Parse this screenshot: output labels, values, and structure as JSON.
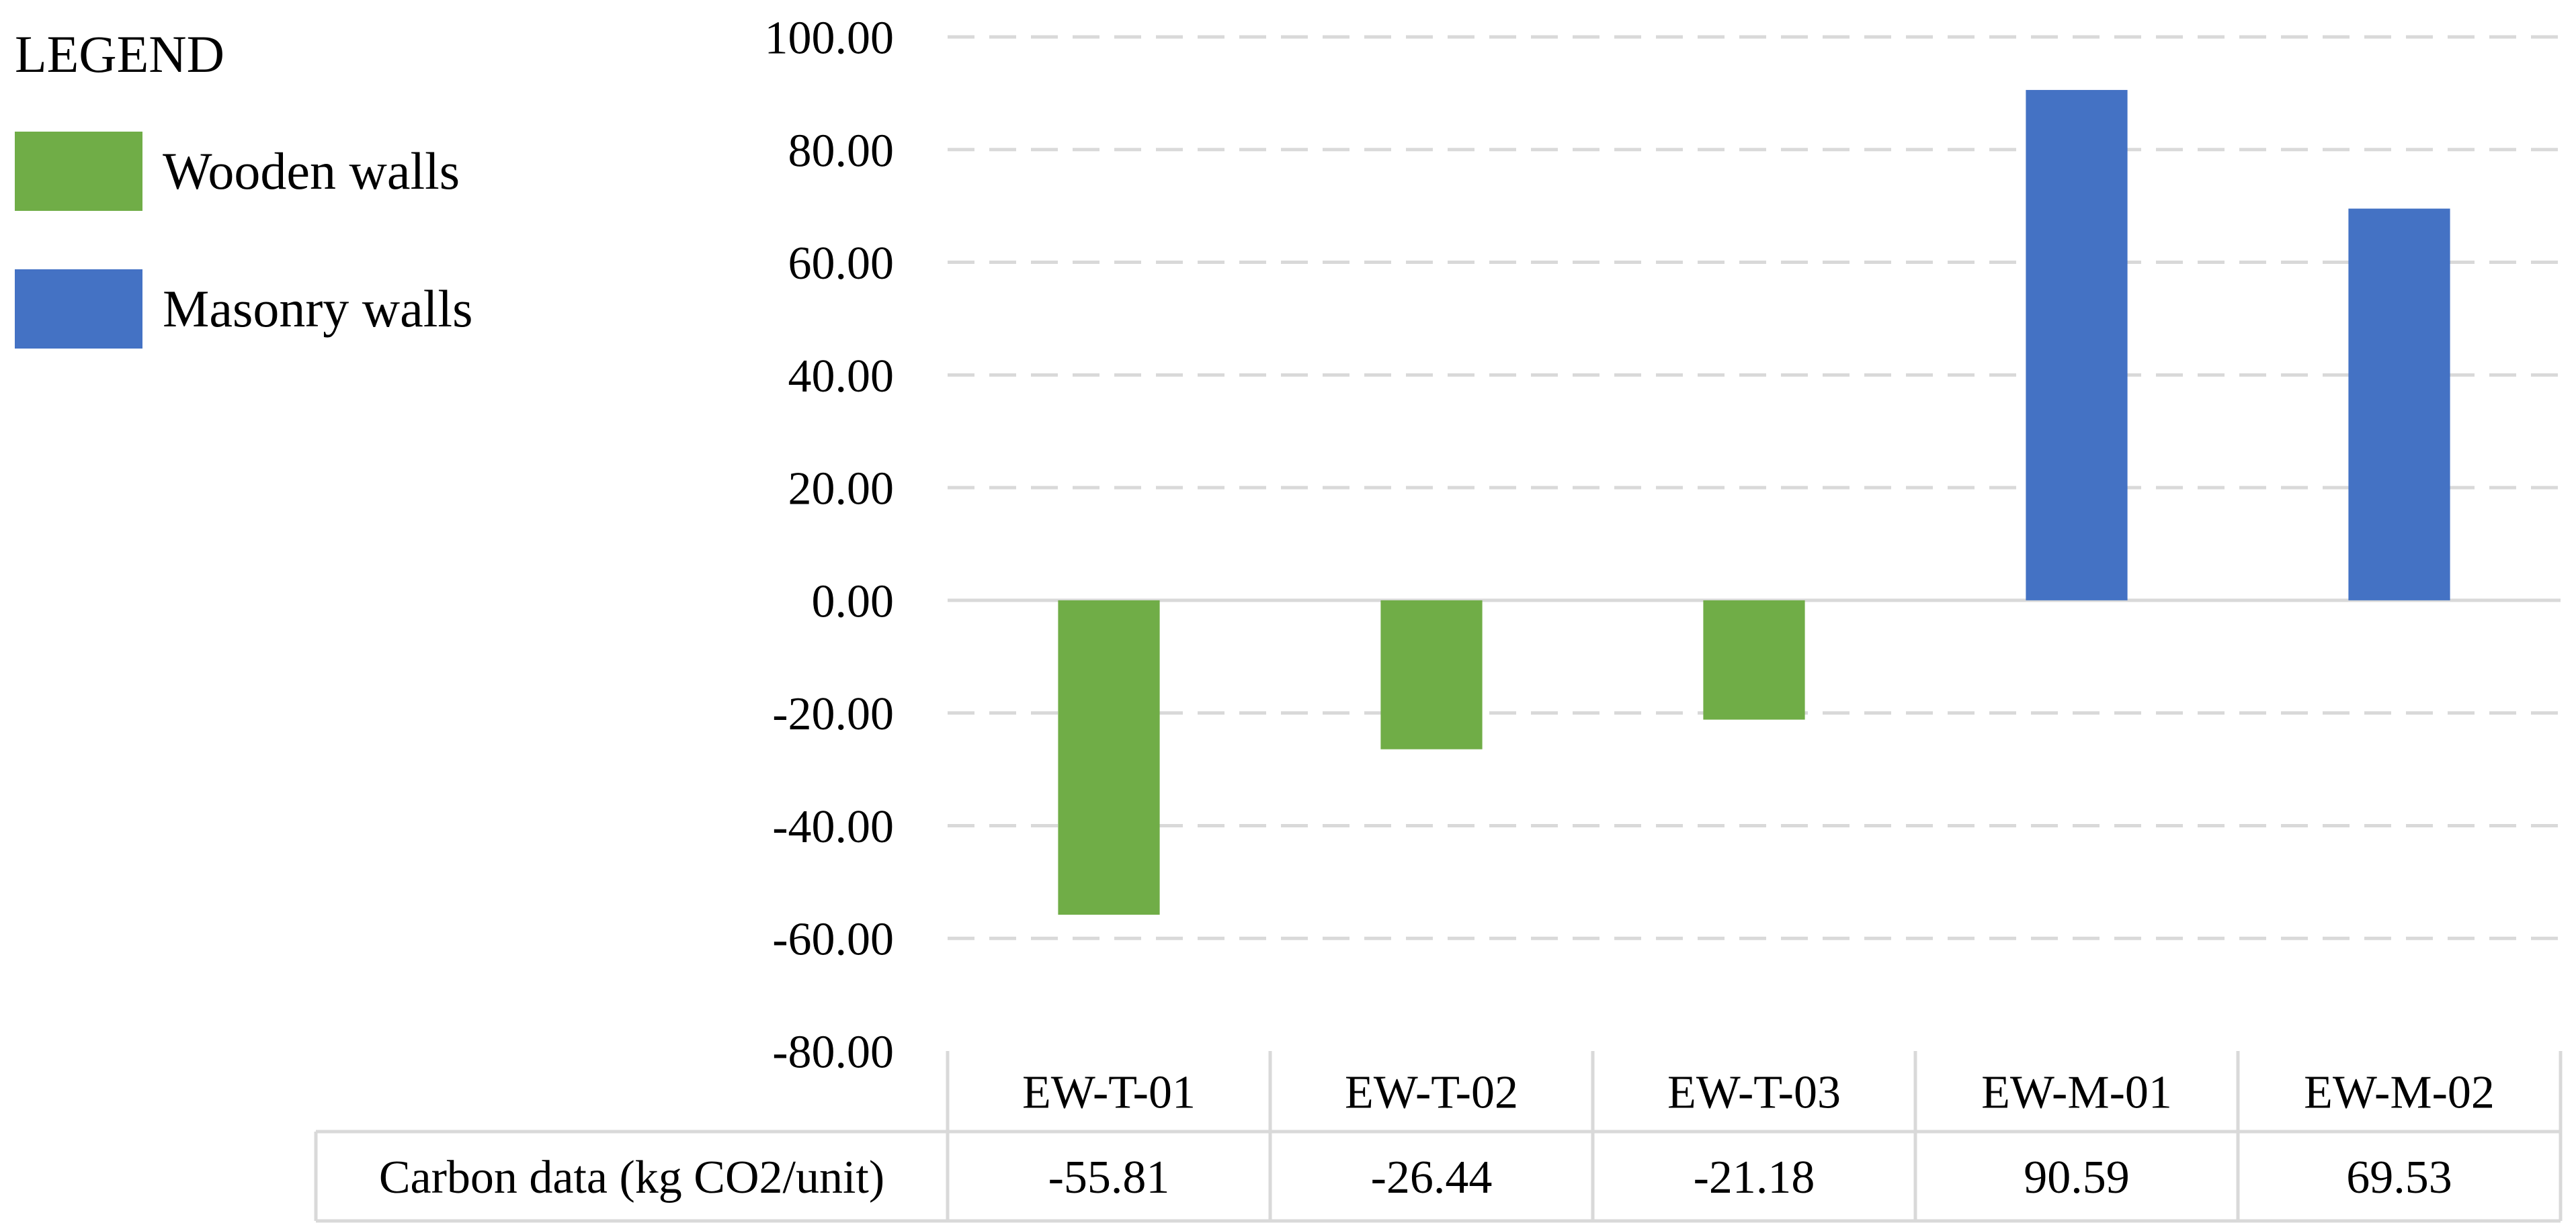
{
  "legend": {
    "title": "LEGEND",
    "items": [
      {
        "label": "Wooden walls",
        "color": "#70AD47"
      },
      {
        "label": "Masonry walls",
        "color": "#4472C4"
      }
    ]
  },
  "chart_data": {
    "type": "bar",
    "title": "",
    "xlabel": "",
    "ylabel": "",
    "categories": [
      "EW-T-01",
      "EW-T-02",
      "EW-T-03",
      "EW-M-01",
      "EW-M-02"
    ],
    "series": [
      {
        "name": "Carbon data (kg CO2/unit)",
        "values": [
          -55.81,
          -26.44,
          -21.18,
          90.59,
          69.53
        ],
        "value_labels": [
          "-55.81",
          "-26.44",
          "-21.18",
          "90.59",
          "69.53"
        ],
        "groups": [
          "Wooden walls",
          "Wooden walls",
          "Wooden walls",
          "Masonry walls",
          "Masonry walls"
        ]
      }
    ],
    "ylim": [
      -80,
      100
    ],
    "yticks": [
      100,
      80,
      60,
      40,
      20,
      0,
      -20,
      -40,
      -60,
      -80
    ],
    "ytick_labels": [
      "100.00",
      "80.00",
      "60.00",
      "40.00",
      "20.00",
      "0.00",
      "-20.00",
      "-40.00",
      "-60.00",
      "-80.00"
    ],
    "grid": true,
    "grid_style": "dashed",
    "data_table": {
      "row_label": "Carbon data (kg CO2/unit)"
    },
    "colors": {
      "Wooden walls": "#70AD47",
      "Masonry walls": "#4472C4",
      "grid": "#D9D9D9",
      "table_border": "#D9D9D9"
    }
  }
}
